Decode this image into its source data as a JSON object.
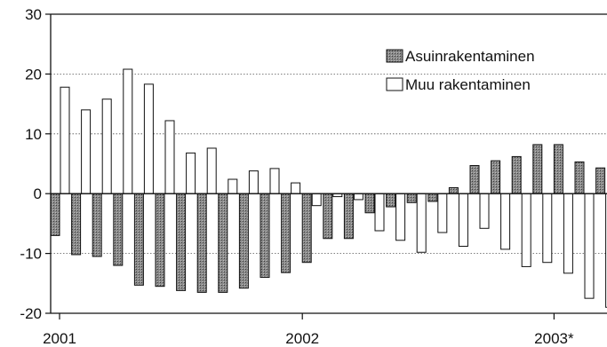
{
  "chart_data": {
    "type": "bar",
    "title": "",
    "xlabel": "",
    "ylabel": "",
    "ylim": [
      -20,
      30
    ],
    "yticks": [
      -20,
      -10,
      0,
      10,
      20,
      30
    ],
    "x_tick_labels": [
      {
        "label": "2001",
        "at_index": 0
      },
      {
        "label": "2002",
        "at_index": 12
      },
      {
        "label": "2003*",
        "at_index": 24
      }
    ],
    "grid": "horizontal dotted",
    "legend_position": "top-right",
    "series": [
      {
        "name": "Asuinrakentaminen",
        "color": "#8a8a8a",
        "values": [
          -7,
          -10.2,
          -10.5,
          -12,
          -15.3,
          -15.5,
          -16.2,
          -16.5,
          -16.5,
          -15.8,
          -14,
          -13.2,
          -11.5,
          -7.5,
          -7.5,
          -3.2,
          -2.2,
          -1.5,
          -1.3,
          1.0,
          4.7,
          5.5,
          6.2,
          8.2,
          8.2,
          5.3,
          4.3
        ]
      },
      {
        "name": "Muu rakentaminen",
        "color": "#ffffff",
        "values": [
          17.8,
          14,
          15.8,
          20.8,
          18.3,
          12.2,
          6.8,
          7.6,
          2.4,
          3.8,
          4.2,
          1.8,
          -2.0,
          -0.5,
          -1.0,
          -6.2,
          -7.8,
          -9.8,
          -6.5,
          -8.8,
          -5.8,
          -9.3,
          -12.2,
          -11.5,
          -13.3,
          -17.5,
          -19
        ]
      }
    ]
  }
}
